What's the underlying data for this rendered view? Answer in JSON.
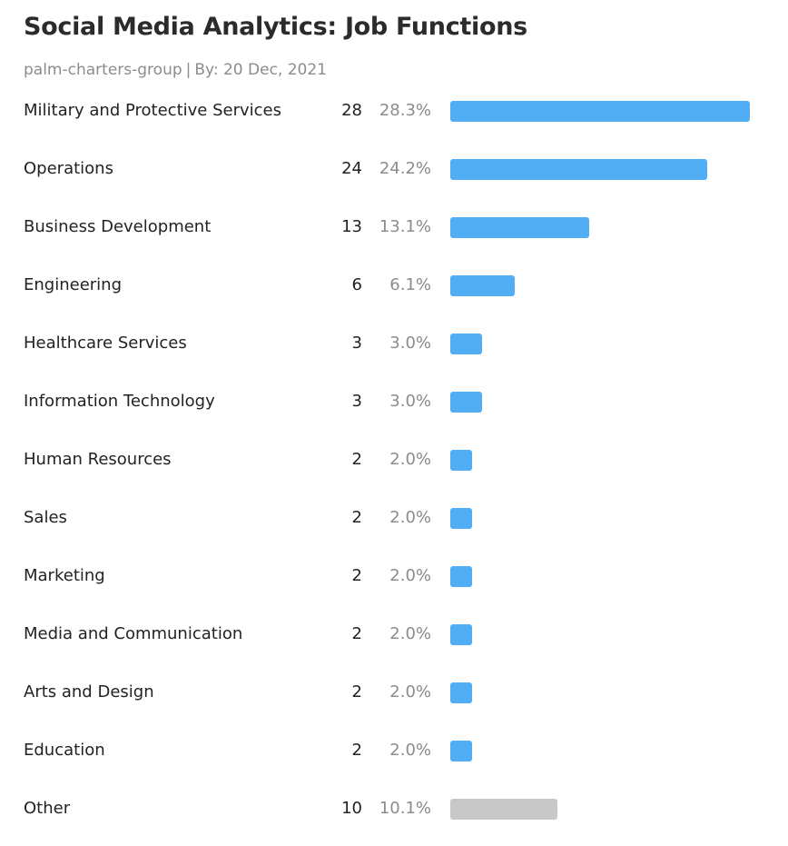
{
  "header": {
    "title": "Social Media Analytics: Job Functions",
    "account": "palm-charters-group",
    "separator": "|",
    "date_label": "By: 20 Dec, 2021"
  },
  "colors": {
    "bar": "#51aef5",
    "other_bar": "#c8c8c8"
  },
  "chart_data": {
    "type": "bar",
    "orientation": "horizontal",
    "title": "Social Media Analytics: Job Functions",
    "xlabel": "",
    "ylabel": "",
    "grid": false,
    "categories": [
      "Military and Protective Services",
      "Operations",
      "Business Development",
      "Engineering",
      "Healthcare Services",
      "Information Technology",
      "Human Resources",
      "Sales",
      "Marketing",
      "Media and Communication",
      "Arts and Design",
      "Education",
      "Other"
    ],
    "values": [
      28,
      24,
      13,
      6,
      3,
      3,
      2,
      2,
      2,
      2,
      2,
      2,
      10
    ],
    "percent_labels": [
      "28.3%",
      "24.2%",
      "13.1%",
      "6.1%",
      "3.0%",
      "3.0%",
      "2.0%",
      "2.0%",
      "2.0%",
      "2.0%",
      "2.0%",
      "2.0%",
      "10.1%"
    ],
    "xlim": [
      0,
      28
    ]
  }
}
